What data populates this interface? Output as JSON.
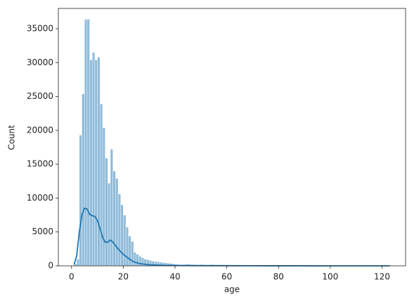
{
  "chart_data": {
    "type": "histogram",
    "x_label": "age",
    "y_label": "Count",
    "color": "#1f77b4",
    "bins": [
      1,
      2,
      3,
      4,
      5,
      6,
      7,
      8,
      9,
      10,
      11,
      12,
      13,
      14,
      15,
      16,
      17,
      18,
      19,
      20,
      21,
      22,
      23,
      24,
      25,
      26,
      27,
      28,
      29,
      30,
      31,
      32,
      33,
      34,
      35,
      36,
      37,
      38,
      39,
      40,
      41,
      42,
      43,
      44,
      45,
      46,
      47,
      48,
      49,
      50,
      51,
      52,
      53,
      54,
      55,
      56,
      57,
      58,
      59,
      60,
      61,
      62,
      63,
      64,
      65,
      66,
      67,
      68,
      69,
      70,
      71,
      72,
      73,
      74,
      75,
      76,
      77,
      78,
      79,
      80,
      81,
      82,
      83,
      84,
      85,
      86,
      87,
      88,
      89,
      90,
      91,
      92,
      93,
      94,
      95,
      96,
      97,
      98,
      99,
      100,
      101,
      102,
      103,
      104,
      105,
      106,
      107,
      108,
      109,
      110,
      111,
      112,
      113,
      114,
      115,
      116,
      117,
      118,
      119,
      120,
      121,
      122,
      123
    ],
    "counts": [
      300,
      1000,
      19300,
      25400,
      36400,
      36400,
      30400,
      31500,
      30400,
      30800,
      23900,
      20400,
      15900,
      12200,
      17200,
      14000,
      12900,
      10600,
      9000,
      7500,
      5700,
      4400,
      3600,
      2000,
      1700,
      1400,
      1200,
      1000,
      900,
      800,
      700,
      650,
      600,
      550,
      500,
      450,
      400,
      350,
      300,
      250,
      200,
      190,
      180,
      260,
      220,
      170,
      160,
      150,
      140,
      200,
      150,
      130,
      120,
      200,
      130,
      140,
      110,
      100,
      90,
      80,
      60,
      50,
      40,
      40,
      30,
      30,
      30,
      60,
      30,
      20,
      20,
      20,
      20,
      20,
      20,
      20,
      15,
      15,
      15,
      30,
      10,
      10,
      10,
      10,
      10,
      10,
      10,
      10,
      10,
      10,
      5,
      5,
      5,
      5,
      5,
      5,
      5,
      5,
      5,
      10,
      5,
      5,
      5,
      5,
      5,
      5,
      5,
      5,
      5,
      5,
      3,
      3,
      3,
      3,
      3,
      3,
      3,
      3,
      3,
      3,
      3,
      5
    ],
    "kde": {
      "x": [
        1,
        2,
        3,
        4,
        5,
        6,
        7,
        8,
        9,
        10,
        11,
        12,
        13,
        14,
        15,
        16,
        17,
        18,
        20,
        22,
        24,
        26,
        28,
        30,
        35,
        40,
        50,
        60,
        70,
        80,
        100,
        123
      ],
      "y": [
        200,
        1500,
        5000,
        7500,
        8500,
        8400,
        7600,
        7400,
        7300,
        6700,
        5500,
        4200,
        3500,
        3500,
        3800,
        3500,
        3000,
        2500,
        1700,
        1100,
        600,
        350,
        250,
        150,
        80,
        50,
        30,
        20,
        10,
        5,
        2,
        0
      ]
    },
    "xlim": [
      -5.1,
      129.1
    ],
    "ylim": [
      0,
      38000
    ],
    "xticks": [
      0,
      20,
      40,
      60,
      80,
      100,
      120
    ],
    "yticks": [
      0,
      5000,
      10000,
      15000,
      20000,
      25000,
      30000,
      35000
    ]
  }
}
